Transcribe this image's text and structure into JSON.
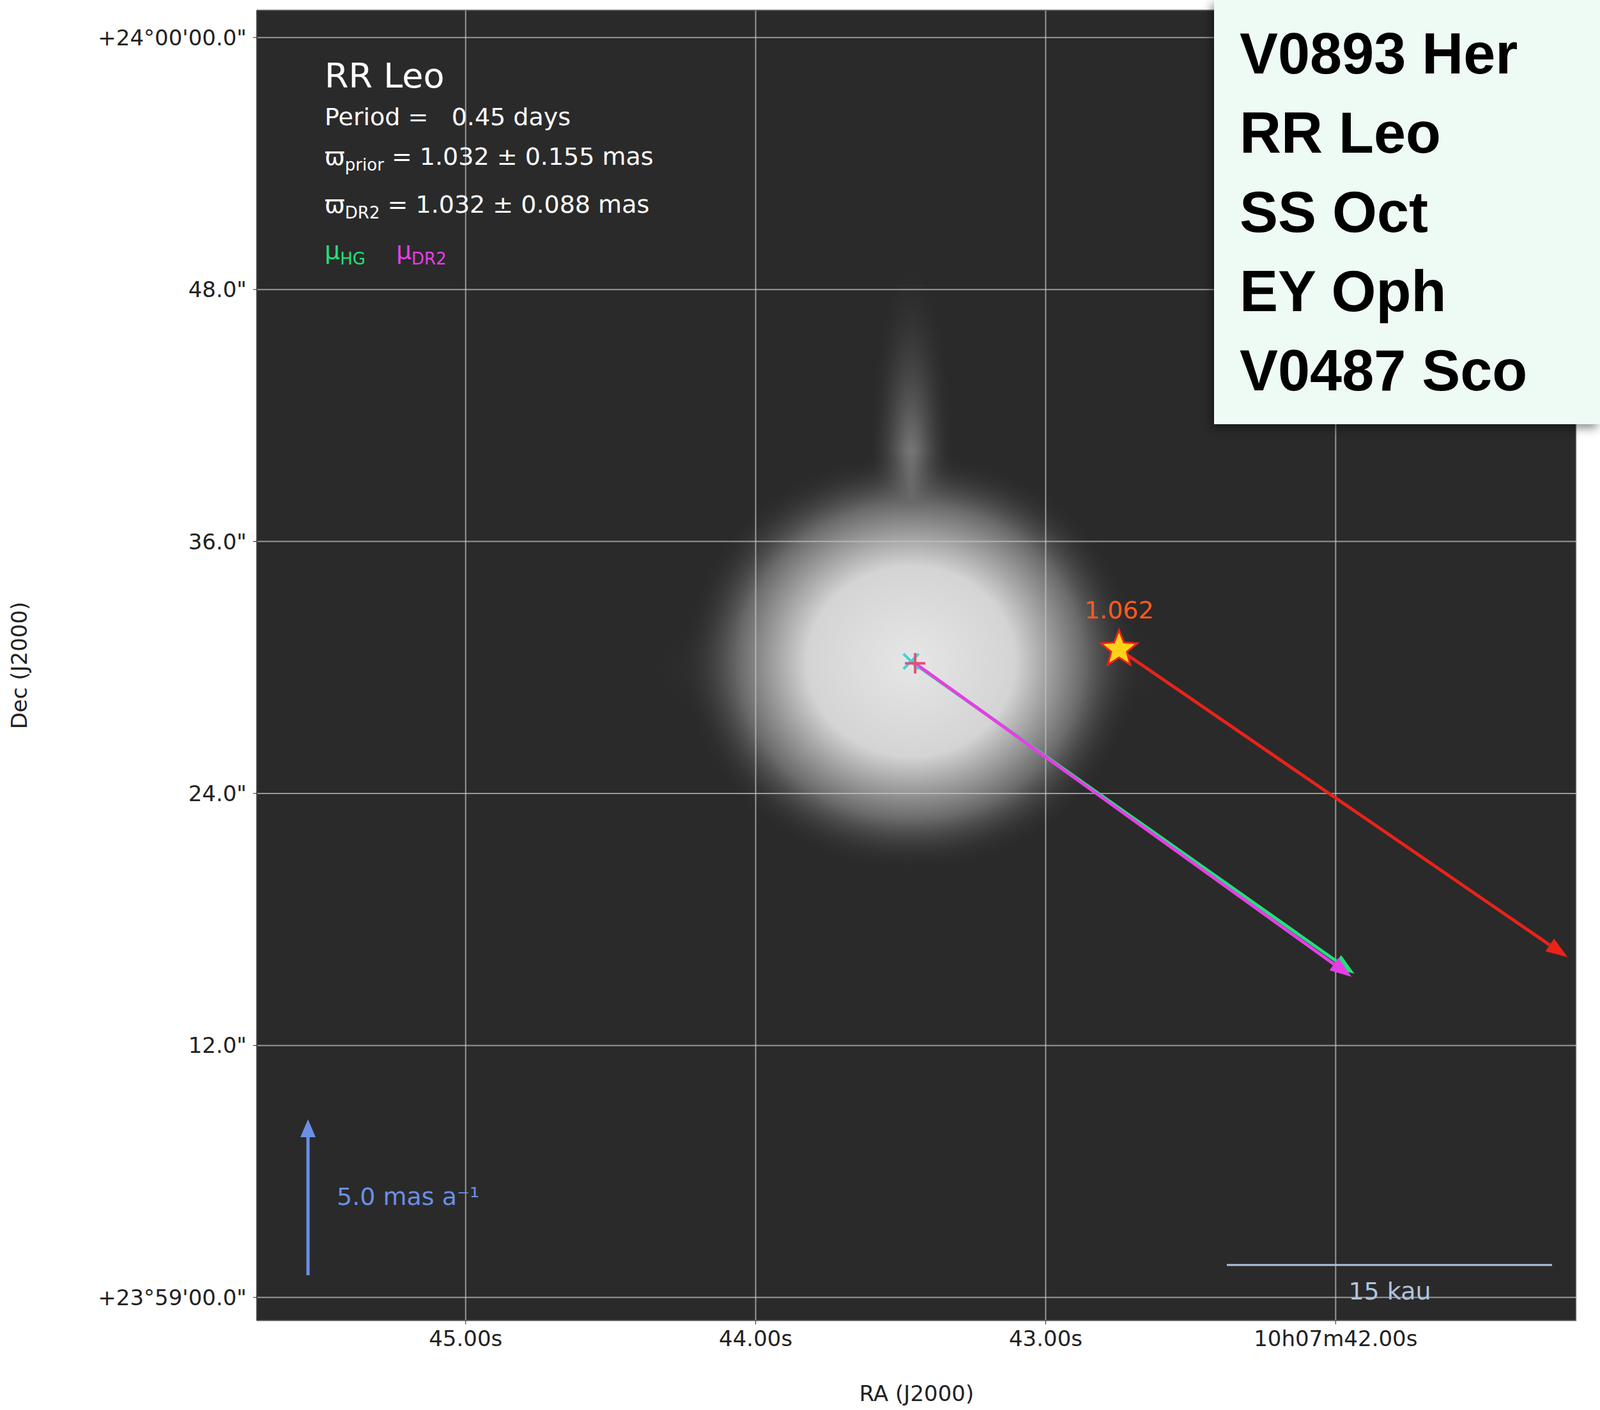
{
  "chart_data": {
    "type": "scatter",
    "title": "RR Leo",
    "info": [
      {
        "text": "Period =   0.45 days"
      },
      {
        "symbol": "ϖ",
        "sub": "prior",
        "text": " = 1.032 ± 0.155 mas"
      },
      {
        "symbol": "ϖ",
        "sub": "DR2",
        "text": " = 1.032 ± 0.088 mas"
      }
    ],
    "x_label": "RA (J2000)",
    "y_label": "Dec (J2000)",
    "xlim": [
      45.72,
      41.17
    ],
    "xticks": [
      {
        "value": 45,
        "label": "45.00s"
      },
      {
        "value": 44,
        "label": "44.00s"
      },
      {
        "value": 43,
        "label": "43.00s"
      },
      {
        "value": 42,
        "label": "10h07m42.00s"
      }
    ],
    "ylim": [
      -1.1,
      61.3
    ],
    "yticks": [
      {
        "value": 0,
        "label": "+23°59'00.0\""
      },
      {
        "value": 12,
        "label": "12.0\""
      },
      {
        "value": 24,
        "label": "24.0\""
      },
      {
        "value": 36,
        "label": "36.0\""
      },
      {
        "value": 48,
        "label": "48.0\""
      },
      {
        "value": 60,
        "label": "+24°00'00.0\""
      }
    ],
    "grid": true,
    "points": [
      {
        "x": 43.464,
        "y": 30.29,
        "marker": "x",
        "color": "#3fd6d6"
      },
      {
        "x": 43.45,
        "y": 30.2,
        "marker": "plus",
        "color": "#e0507a"
      },
      {
        "x": 42.747,
        "y": 30.87,
        "marker": "star",
        "color": "#ffd21a",
        "label": "1.062"
      }
    ],
    "arrows": [
      {
        "symbol": "μ",
        "sub": "HG",
        "color": "#22e07a",
        "x": [
          43.464,
          41.935
        ],
        "y": [
          30.29,
          15.41
        ]
      },
      {
        "symbol": "μ",
        "sub": "DR2",
        "color": "#e63ee6",
        "x": [
          43.45,
          41.945
        ],
        "y": [
          30.2,
          15.27
        ]
      },
      {
        "color": "#e8231a",
        "x": [
          42.747,
          41.2
        ],
        "y": [
          30.87,
          16.2
        ]
      }
    ],
    "scale_bars": [
      {
        "label": "5.0 mas a⁻¹",
        "direction": "vertical",
        "color": "#6b8fe6"
      },
      {
        "label": "15 kau",
        "direction": "horizontal",
        "color": "#b0c4de"
      }
    ]
  },
  "sidebar": [
    "V0893 Her",
    "RR Leo",
    "SS Oct",
    "EY Oph",
    "V0487 Sco"
  ]
}
